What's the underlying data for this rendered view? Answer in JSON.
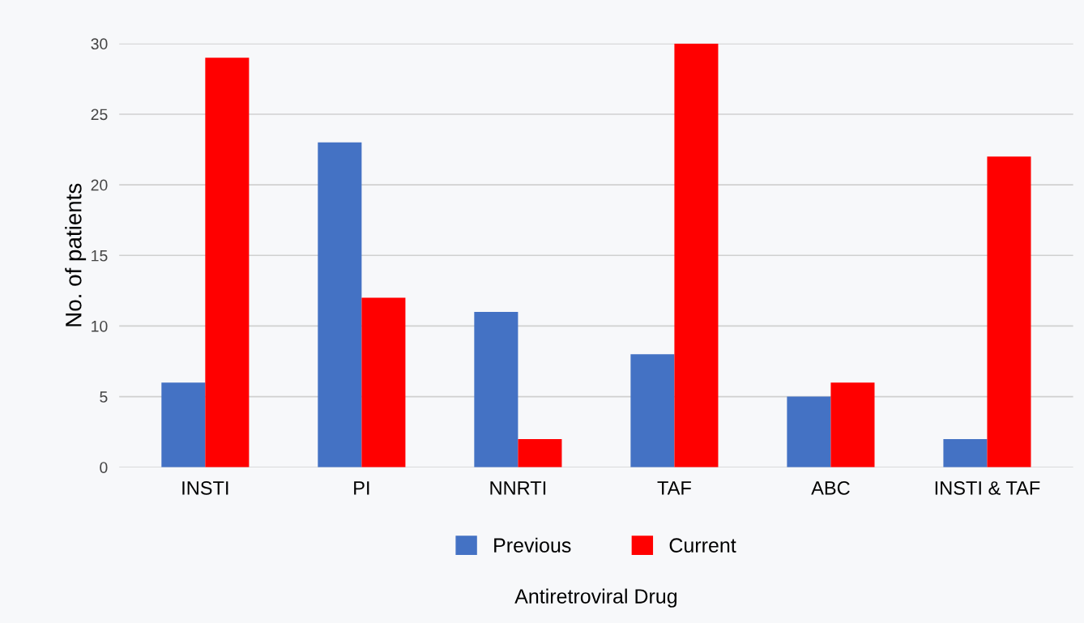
{
  "chart_data": {
    "type": "bar",
    "xlabel": "Antiretroviral Drug",
    "ylabel": "No. of patients",
    "categories": [
      "INSTI",
      "PI",
      "NNRTI",
      "TAF",
      "ABC",
      "INSTI & TAF"
    ],
    "series": [
      {
        "name": "Previous",
        "color": "#4472c4",
        "values": [
          6,
          23,
          11,
          8,
          5,
          2
        ]
      },
      {
        "name": "Current",
        "color": "#ff0000",
        "values": [
          29,
          12,
          2,
          30,
          6,
          22
        ]
      }
    ],
    "ylim": [
      0,
      30
    ],
    "yticks": [
      0,
      5,
      10,
      15,
      20,
      25,
      30
    ],
    "grid": "y",
    "legend": "bottom"
  }
}
